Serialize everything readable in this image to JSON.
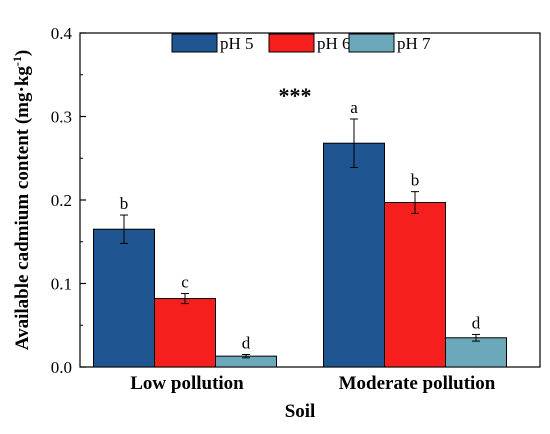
{
  "chart_data": {
    "type": "bar",
    "xlabel": "Soil",
    "ylabel": "Available cadmium content (mg·kg",
    "ylabel_sup": "-1",
    "ylabel_close": ")",
    "ylim": [
      0,
      0.4
    ],
    "yticks": [
      "0.0",
      "0.1",
      "0.2",
      "0.3",
      "0.4"
    ],
    "categories": [
      "Low pollution",
      "Moderate pollution"
    ],
    "series": [
      {
        "name": "pH 5",
        "color": "#1f5590",
        "values": [
          0.165,
          0.268
        ],
        "errors": [
          0.017,
          0.029
        ],
        "letters": [
          "b",
          "a"
        ]
      },
      {
        "name": "pH 6",
        "color": "#f71e1e",
        "values": [
          0.082,
          0.197
        ],
        "errors": [
          0.006,
          0.013
        ],
        "letters": [
          "c",
          "b"
        ]
      },
      {
        "name": "pH 7",
        "color": "#6aa8ba",
        "values": [
          0.013,
          0.035
        ],
        "errors": [
          0.002,
          0.004
        ],
        "letters": [
          "d",
          "d"
        ]
      }
    ],
    "annotation": "***",
    "legend_position": "top",
    "grid": false
  }
}
